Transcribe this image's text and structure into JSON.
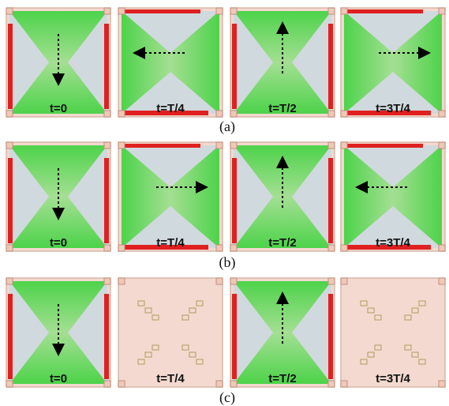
{
  "rows": [
    {
      "caption": "(a)",
      "panels": [
        "t=0",
        "t=T/4",
        "t=T/2",
        "t=3T/4"
      ]
    },
    {
      "caption": "(b)",
      "panels": [
        "t=0",
        "t=T/4",
        "t=T/2",
        "t=3T/4"
      ]
    },
    {
      "caption": "(c)",
      "panels": [
        "t=0",
        "t=T/4",
        "t=T/2",
        "t=3T/4"
      ]
    }
  ]
}
